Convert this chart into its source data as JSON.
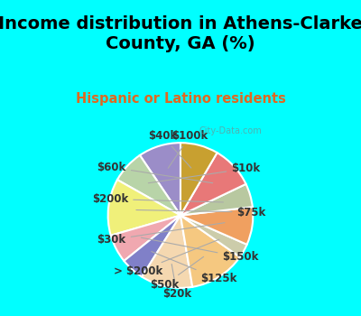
{
  "title": "Income distribution in Athens-Clarke\nCounty, GA (%)",
  "subtitle": "Hispanic or Latino residents",
  "labels": [
    "$100k",
    "$10k",
    "$75k",
    "$150k",
    "$125k",
    "$20k",
    "$50k",
    "> $200k",
    "$30k",
    "$200k",
    "$60k",
    "$40k"
  ],
  "values": [
    9,
    7,
    12,
    6,
    5,
    11,
    12,
    3,
    8,
    5,
    9,
    8
  ],
  "colors": [
    "#9b8dc8",
    "#b8d4a8",
    "#f0f07a",
    "#f0a8b0",
    "#8080c8",
    "#f5d8b0",
    "#f5c880",
    "#ccccaa",
    "#f0a060",
    "#b8c8a0",
    "#e87878",
    "#c8a030"
  ],
  "background_top": "#00ffff",
  "background_chart": "#e8f5e0",
  "watermark": "City-Data.com",
  "label_fontsize": 8.5,
  "title_fontsize": 14
}
